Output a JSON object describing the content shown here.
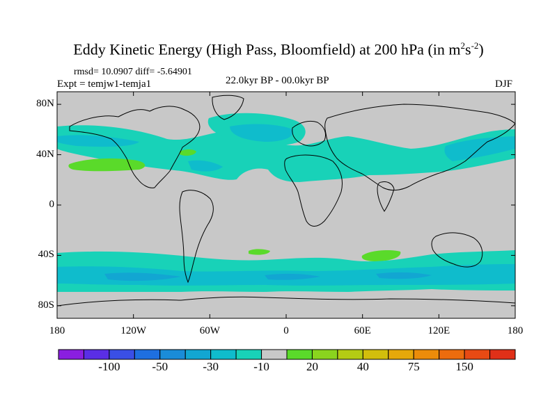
{
  "title": {
    "main": "Eddy Kinetic Energy (High Pass, Bloomfield) at 200 hPa (in m",
    "sup1": "2",
    "mid": "s",
    "sup2": "-2",
    "end": ")"
  },
  "subtitle": {
    "stats": "rmsd= 10.0907 diff= -5.64901",
    "experiment": "Expt = temjw1-temja1",
    "period": "22.0kyr BP - 00.0kyr BP",
    "season": "DJF"
  },
  "map": {
    "lat_ticks": [
      {
        "label": "80N",
        "lat": 80
      },
      {
        "label": "40N",
        "lat": 40
      },
      {
        "label": "0",
        "lat": 0
      },
      {
        "label": "40S",
        "lat": -40
      },
      {
        "label": "80S",
        "lat": -80
      }
    ],
    "lon_ticks": [
      {
        "label": "180",
        "lon": -180
      },
      {
        "label": "120W",
        "lon": -120
      },
      {
        "label": "60W",
        "lon": -60
      },
      {
        "label": "0",
        "lon": 0
      },
      {
        "label": "60E",
        "lon": 60
      },
      {
        "label": "120E",
        "lon": 120
      },
      {
        "label": "180",
        "lon": 180
      }
    ]
  },
  "colorbar": {
    "colors": [
      "#8a1ee0",
      "#5a2ee6",
      "#3a4fe6",
      "#1e6fe0",
      "#1a8cd8",
      "#12a6d2",
      "#0fbccc",
      "#18d2b8",
      "#c8c8c8",
      "#5ada2a",
      "#8ad41e",
      "#b4cc14",
      "#d2be0c",
      "#e6a80a",
      "#ec8c0a",
      "#ec6c0e",
      "#e84a14",
      "#e03018"
    ],
    "tick_labels": [
      {
        "label": "-100",
        "boundary": 2
      },
      {
        "label": "-50",
        "boundary": 4
      },
      {
        "label": "-30",
        "boundary": 6
      },
      {
        "label": "-10",
        "boundary": 8
      },
      {
        "label": "20",
        "boundary": 10
      },
      {
        "label": "40",
        "boundary": 12
      },
      {
        "label": "75",
        "boundary": 14
      },
      {
        "label": "150",
        "boundary": 16
      }
    ]
  },
  "colors": {
    "background": "#c8c8c8",
    "negative_light": "#18d2b8",
    "negative_mid": "#0fbccc",
    "negative_dark": "#12a6d2",
    "positive_light": "#5ada2a",
    "coast": "#000000"
  }
}
